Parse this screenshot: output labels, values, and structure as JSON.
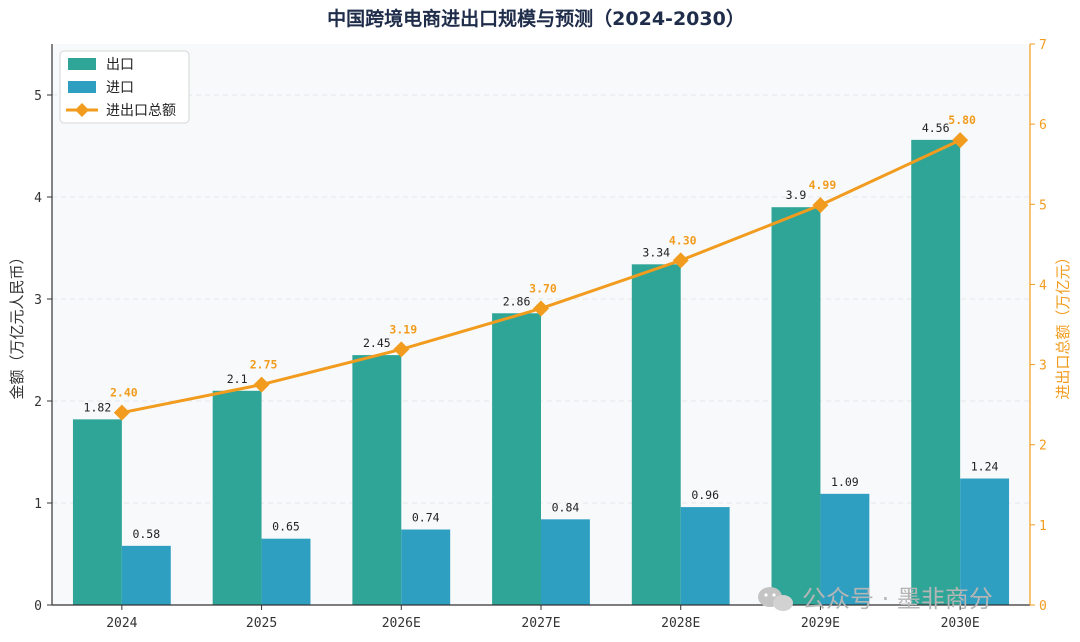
{
  "chart_data": {
    "type": "bar",
    "title": "中国跨境电商进出口规模与预测（2024-2030）",
    "categories": [
      "2024",
      "2025",
      "2026E",
      "2027E",
      "2028E",
      "2029E",
      "2030E"
    ],
    "series": [
      {
        "name": "出口",
        "type": "bar",
        "axis": "left",
        "color": "#2ea597",
        "values": [
          1.82,
          2.1,
          2.45,
          2.86,
          3.34,
          3.9,
          4.56
        ],
        "labels": [
          "1.82",
          "2.1",
          "2.45",
          "2.86",
          "3.34",
          "3.9",
          "4.56"
        ]
      },
      {
        "name": "进口",
        "type": "bar",
        "axis": "left",
        "color": "#2e9fc1",
        "values": [
          0.58,
          0.65,
          0.74,
          0.84,
          0.96,
          1.09,
          1.24
        ],
        "labels": [
          "0.58",
          "0.65",
          "0.74",
          "0.84",
          "0.96",
          "1.09",
          "1.24"
        ]
      },
      {
        "name": "进出口总额",
        "type": "line",
        "axis": "right",
        "color": "#f29c1f",
        "marker": "diamond",
        "values": [
          2.4,
          2.75,
          3.19,
          3.7,
          4.3,
          4.99,
          5.8
        ],
        "labels": [
          "2.40",
          "2.75",
          "3.19",
          "3.70",
          "4.30",
          "4.99",
          "5.80"
        ]
      }
    ],
    "ylabel": "金额（万亿元人民币）",
    "ylim": [
      0,
      5.5
    ],
    "yticks": [
      "0",
      "1",
      "2",
      "3",
      "4",
      "5"
    ],
    "y2label": "进出口总额（万亿元）",
    "y2lim": [
      0,
      7
    ],
    "y2ticks": [
      "0",
      "1",
      "2",
      "3",
      "4",
      "5",
      "6",
      "7"
    ],
    "grid": true,
    "legend_position": "top-left"
  },
  "watermark": "公众号 · 墨非商分",
  "colors": {
    "background": "#f8f9fb",
    "axis": "#333333",
    "grid": "#e3e6ec",
    "accent": "#f29c1f"
  }
}
